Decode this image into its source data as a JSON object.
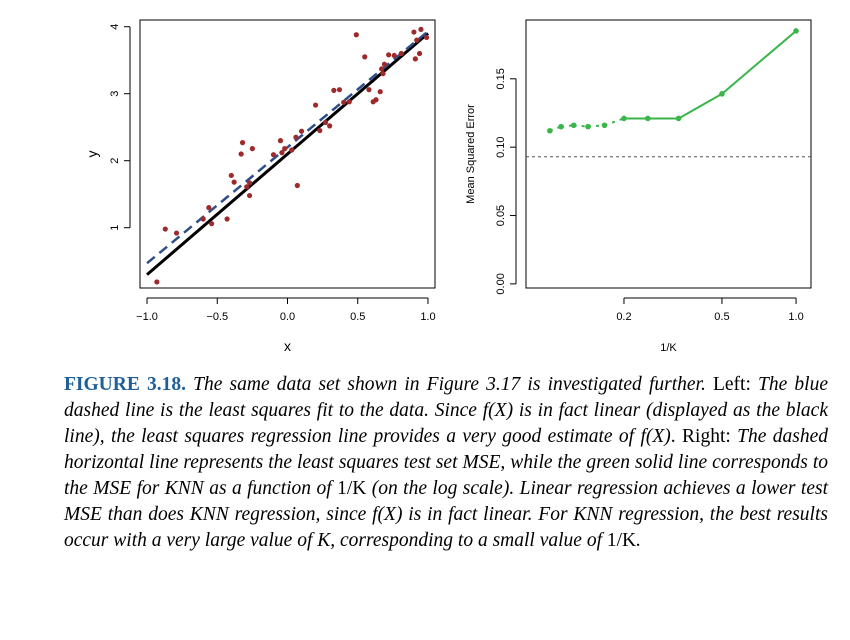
{
  "chart_data": [
    {
      "type": "scatter",
      "xlabel": "x",
      "ylabel": "y",
      "xlim": [
        -1.05,
        1.05
      ],
      "ylim": [
        0.1,
        4.1
      ],
      "xticks": [
        -1.0,
        -0.5,
        0.0,
        0.5,
        1.0
      ],
      "xtick_labels": [
        "−1.0",
        "−0.5",
        "0.0",
        "0.5",
        "1.0"
      ],
      "yticks": [
        1,
        2,
        3,
        4
      ],
      "ytick_labels": [
        "1",
        "2",
        "3",
        "4"
      ],
      "points": [
        [
          -0.93,
          0.19
        ],
        [
          -0.87,
          0.98
        ],
        [
          -0.79,
          0.92
        ],
        [
          -0.6,
          1.13
        ],
        [
          -0.56,
          1.3
        ],
        [
          -0.54,
          1.06
        ],
        [
          -0.43,
          1.13
        ],
        [
          -0.4,
          1.78
        ],
        [
          -0.38,
          1.68
        ],
        [
          -0.33,
          2.1
        ],
        [
          -0.32,
          2.27
        ],
        [
          -0.29,
          1.61
        ],
        [
          -0.27,
          1.67
        ],
        [
          -0.27,
          1.48
        ],
        [
          -0.25,
          2.18
        ],
        [
          -0.1,
          2.09
        ],
        [
          -0.05,
          2.3
        ],
        [
          -0.04,
          2.12
        ],
        [
          -0.02,
          2.18
        ],
        [
          0.03,
          2.16
        ],
        [
          0.06,
          2.35
        ],
        [
          0.07,
          1.63
        ],
        [
          0.1,
          2.44
        ],
        [
          0.2,
          2.83
        ],
        [
          0.23,
          2.45
        ],
        [
          0.27,
          2.57
        ],
        [
          0.3,
          2.52
        ],
        [
          0.33,
          3.05
        ],
        [
          0.37,
          3.06
        ],
        [
          0.4,
          2.87
        ],
        [
          0.44,
          2.88
        ],
        [
          0.49,
          3.88
        ],
        [
          0.55,
          3.55
        ],
        [
          0.58,
          3.06
        ],
        [
          0.61,
          2.88
        ],
        [
          0.63,
          2.91
        ],
        [
          0.66,
          3.03
        ],
        [
          0.67,
          3.37
        ],
        [
          0.68,
          3.3
        ],
        [
          0.69,
          3.44
        ],
        [
          0.72,
          3.58
        ],
        [
          0.76,
          3.57
        ],
        [
          0.81,
          3.6
        ],
        [
          0.9,
          3.92
        ],
        [
          0.91,
          3.52
        ],
        [
          0.92,
          3.8
        ],
        [
          0.94,
          3.6
        ],
        [
          0.95,
          3.96
        ],
        [
          0.99,
          3.84
        ]
      ],
      "lines": [
        {
          "style": "solid",
          "color": "#000000",
          "x": [
            -1.0,
            1.0
          ],
          "y": [
            0.3,
            3.9
          ]
        },
        {
          "style": "dashed",
          "color": "#2e4e8a",
          "x": [
            -1.0,
            1.0
          ],
          "y": [
            0.47,
            3.93
          ]
        }
      ],
      "colors": {
        "points": "#9e2a2b"
      }
    },
    {
      "type": "line",
      "x_scale": "log",
      "xlabel": "1/K",
      "ylabel": "Mean Squared Error",
      "xlim": [
        0.08,
        1.15
      ],
      "ylim": [
        -0.003,
        0.193
      ],
      "xticks": [
        0.2,
        0.5,
        1.0
      ],
      "xtick_labels": [
        "0.2",
        "0.5",
        "1.0"
      ],
      "yticks": [
        0.0,
        0.05,
        0.1,
        0.15
      ],
      "ytick_labels": [
        "0.00",
        "0.05",
        "0.10",
        "0.15"
      ],
      "series": [
        {
          "color": "#3ab54a",
          "x": [
            0.1,
            0.111,
            0.125,
            0.1429,
            0.1667,
            0.2,
            0.25,
            0.3333,
            0.5,
            1.0
          ],
          "y": [
            0.112,
            0.115,
            0.116,
            0.115,
            0.116,
            0.121,
            0.121,
            0.121,
            0.139,
            0.185
          ]
        }
      ],
      "reference_line": {
        "y": 0.093,
        "style": "dotted",
        "color": "#555555"
      }
    }
  ],
  "caption": {
    "label": "FIGURE 3.18.",
    "s1": " The same data set shown in Figure 3.17 is investigated further.",
    "left_word": "Left:",
    "s2": " The blue dashed line is the least squares fit to the data. Since ",
    "fx1": "f(X)",
    "s3": " is in fact linear (displayed as the black line), the least squares regression line provides a very good estimate of ",
    "fx2": "f(X)",
    "s4": ". ",
    "right_word": "Right:",
    "s5": " The dashed horizontal line represents the least squares test set MSE, while the green solid line corresponds to the MSE for KNN as a function of ",
    "invk1": "1/K",
    "s6": " (on the log scale). Linear regression achieves a lower test MSE than does KNN regression, since ",
    "fx3": "f(X)",
    "s7": " is in fact linear. For KNN regression, the best results occur with a very large value of ",
    "k": "K",
    "s8": ", corresponding to a small value of ",
    "invk2": "1/K",
    "s9": "."
  }
}
